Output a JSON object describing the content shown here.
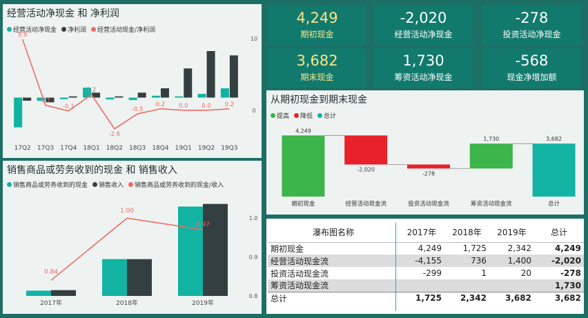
{
  "colors": {
    "teal": "#12b3a3",
    "dark": "#333f40",
    "red_line": "#f26a60",
    "green": "#3cb54a",
    "red": "#e8212a",
    "kpi_bg": "#127a6d",
    "highlight": "#ffe58a"
  },
  "kpis": [
    {
      "value": "4,249",
      "label": "期初现金",
      "highlight": true
    },
    {
      "value": "-2,020",
      "label": "经营活动净现金",
      "highlight": false
    },
    {
      "value": "-278",
      "label": "投资活动净现金",
      "highlight": false
    },
    {
      "value": "3,682",
      "label": "期末现金",
      "highlight": true
    },
    {
      "value": "1,730",
      "label": "筹资活动净现金",
      "highlight": false
    },
    {
      "value": "-568",
      "label": "现金净增加额",
      "highlight": false
    }
  ],
  "chart_data": [
    {
      "type": "bar",
      "title": "经营活动净现金 和 净利润",
      "legend": [
        "经营活动净现金",
        "净利润",
        "经营活动现金/净利润"
      ],
      "categories": [
        "17Q2",
        "17Q3",
        "17Q4",
        "18Q1",
        "18Q2",
        "18Q3",
        "18Q4",
        "19Q1",
        "19Q2",
        "19Q3"
      ],
      "series": [
        {
          "name": "经营活动净现金",
          "values": [
            -480,
            -50,
            -25,
            160,
            -30,
            -40,
            30,
            20,
            60,
            150
          ]
        },
        {
          "name": "净利润",
          "values": [
            -50,
            -75,
            20,
            80,
            20,
            80,
            150,
            470,
            750,
            680
          ]
        },
        {
          "name": "经营活动现金/净利润",
          "axis": "right",
          "values": [
            9.9,
            0.7,
            -0.1,
            2.2,
            -2.6,
            -0.5,
            0.2,
            0.0,
            0.0,
            0.2
          ]
        }
      ],
      "point_labels": [
        "9.9",
        "0.7",
        "-0.1",
        "2.2",
        "-2.6",
        "-0.5",
        "0.2",
        "0.0",
        "0.0",
        "0.2"
      ],
      "ylim": [
        -550,
        950
      ],
      "y2lim": [
        -3,
        10
      ],
      "y2_ticks": [
        "10",
        "0"
      ],
      "legend_position": "top-left"
    },
    {
      "type": "bar",
      "title": "销售商品或劳务收到的现金 和 销售收入",
      "legend": [
        "销售商品或劳务收到的现金",
        "销售收入",
        "销售商品或劳务收到的现金/收入"
      ],
      "categories": [
        "2017年",
        "2018年",
        "2019年"
      ],
      "series": [
        {
          "name": "销售商品或劳务收到的现金",
          "values": [
            1000,
            7000,
            17000
          ]
        },
        {
          "name": "销售收入",
          "values": [
            1100,
            7000,
            17500
          ]
        },
        {
          "name": "销售商品或劳务收到的现金/收入",
          "axis": "right",
          "values": [
            0.84,
            1.0,
            0.97
          ]
        }
      ],
      "point_labels": [
        "0.84",
        "1.00",
        "0.97"
      ],
      "ylim": [
        0,
        18500
      ],
      "y2lim": [
        0.8,
        1.05
      ],
      "y2_ticks": [
        "1.0",
        "0.9",
        "0.8"
      ],
      "legend_position": "top-left"
    },
    {
      "type": "waterfall",
      "title": "从期初现金到期末现金",
      "legend": [
        "提高",
        "降低",
        "总计"
      ],
      "categories": [
        "期初现金",
        "经营活动现金流",
        "投资活动现金流",
        "筹资活动现金流",
        "总计"
      ],
      "values": [
        4249,
        -2020,
        -278,
        1730,
        3682
      ],
      "kinds": [
        "total",
        "decrease",
        "decrease",
        "increase",
        "total"
      ],
      "value_labels": [
        "4,249",
        "-2,020",
        "-278",
        "1,730",
        "3,682"
      ],
      "ylim": [
        0,
        4600
      ],
      "legend_position": "top-left"
    }
  ],
  "table": {
    "headers": [
      "瀑布图名称",
      "2017年",
      "2018年",
      "2019年",
      "总计"
    ],
    "rows": [
      {
        "name": "期初现金",
        "cells": [
          "4,249",
          "1,725",
          "2,342",
          "4,249"
        ]
      },
      {
        "name": "经营活动现金流",
        "cells": [
          "-4,155",
          "736",
          "1,400",
          "-2,020"
        ]
      },
      {
        "name": "投资活动现金流",
        "cells": [
          "-299",
          "1",
          "20",
          "-278"
        ]
      },
      {
        "name": "筹资活动现金流",
        "cells": [
          "",
          "",
          "",
          "1,730"
        ]
      },
      {
        "name": "总计",
        "cells": [
          "1,725",
          "2,342",
          "3,682",
          "3,682"
        ]
      }
    ]
  }
}
